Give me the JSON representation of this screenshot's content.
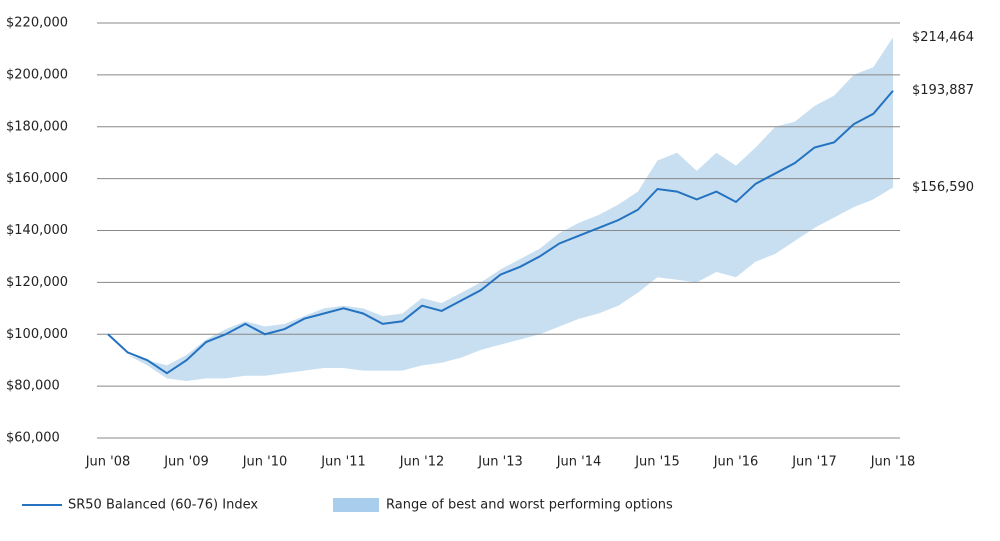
{
  "chart_data": {
    "type": "line",
    "categories": [
      "Jun '08",
      null,
      null,
      null,
      "Jun '09",
      null,
      null,
      null,
      "Jun '10",
      null,
      null,
      null,
      "Jun '11",
      null,
      null,
      null,
      "Jun '12",
      null,
      null,
      null,
      "Jun '13",
      null,
      null,
      null,
      "Jun '14",
      null,
      null,
      null,
      "Jun '15",
      null,
      null,
      null,
      "Jun '16",
      null,
      null,
      null,
      "Jun '17",
      null,
      null,
      null,
      "Jun '18"
    ],
    "series": [
      {
        "name": "SR50 Balanced (60-76) Index",
        "color": "#2472c0",
        "values": [
          100000,
          93000,
          90000,
          85000,
          90000,
          97000,
          100000,
          104000,
          100000,
          102000,
          106000,
          108000,
          110000,
          108000,
          104000,
          105000,
          111000,
          109000,
          113000,
          117000,
          123000,
          126000,
          130000,
          135000,
          138000,
          141000,
          144000,
          148000,
          156000,
          155000,
          152000,
          155000,
          151000,
          158000,
          162000,
          166000,
          172000,
          174000,
          181000,
          185000,
          193887
        ]
      }
    ],
    "band": {
      "name": "Range of best and worst performing options",
      "color": "#c8dff1",
      "legend_color": "#a9cdec",
      "high": [
        100000,
        92000,
        90000,
        88000,
        92000,
        98000,
        102000,
        105000,
        103000,
        104000,
        107000,
        110000,
        111000,
        110000,
        107000,
        108000,
        114000,
        112000,
        116000,
        120000,
        125000,
        129000,
        133000,
        139000,
        143000,
        146000,
        150000,
        155000,
        167000,
        170000,
        163000,
        170000,
        165000,
        172000,
        180000,
        182000,
        188000,
        192000,
        200000,
        203000,
        214464
      ],
      "low": [
        100000,
        92000,
        88000,
        83000,
        82000,
        83000,
        83000,
        84000,
        84000,
        85000,
        86000,
        87000,
        87000,
        86000,
        86000,
        86000,
        88000,
        89000,
        91000,
        94000,
        96000,
        98000,
        100000,
        103000,
        106000,
        108000,
        111000,
        116000,
        122000,
        121000,
        120000,
        124000,
        122000,
        128000,
        131000,
        136000,
        141000,
        145000,
        149000,
        152000,
        156590
      ]
    },
    "annotations": [
      {
        "value": 214464,
        "label": "$214,464"
      },
      {
        "value": 193887,
        "label": "$193,887"
      },
      {
        "value": 156590,
        "label": "$156,590"
      }
    ],
    "ylim": [
      60000,
      220000
    ],
    "yticks": [
      {
        "value": 60000,
        "label": "$60,000"
      },
      {
        "value": 80000,
        "label": "$80,000"
      },
      {
        "value": 100000,
        "label": "$100,000"
      },
      {
        "value": 120000,
        "label": "$120,000"
      },
      {
        "value": 140000,
        "label": "$140,000"
      },
      {
        "value": 160000,
        "label": "$160,000"
      },
      {
        "value": 180000,
        "label": "$180,000"
      },
      {
        "value": 200000,
        "label": "$200,000"
      },
      {
        "value": 220000,
        "label": "$220,000"
      }
    ],
    "grid": true,
    "legend": "bottom-left"
  }
}
